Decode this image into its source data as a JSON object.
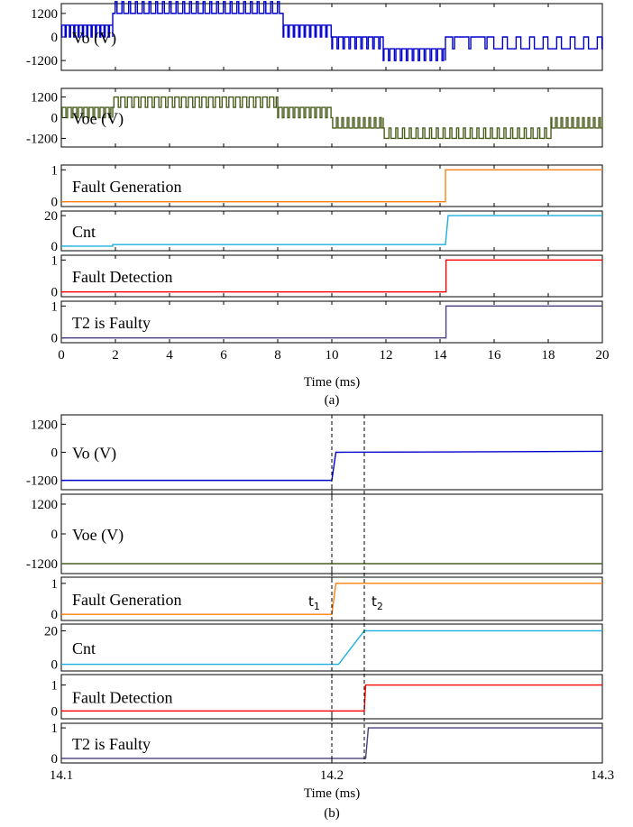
{
  "figure": {
    "panels": [
      {
        "caption": "(a)",
        "xlabel": "Time (ms)"
      },
      {
        "caption": "(b)",
        "xlabel": "Time (ms)"
      }
    ]
  },
  "chart_data": [
    {
      "type": "line",
      "caption": "(a)",
      "xlabel": "Time (ms)",
      "xlim": [
        0,
        20
      ],
      "xticks": [
        "0",
        "2",
        "4",
        "6",
        "8",
        "10",
        "12",
        "14",
        "16",
        "18",
        "20"
      ],
      "xtick_values": [
        0,
        2,
        4,
        6,
        8,
        10,
        12,
        14,
        16,
        18,
        20
      ],
      "subplots": [
        {
          "label": "Vo (V)",
          "color": "#0000cc",
          "ylim": [
            -1700,
            1700
          ],
          "yticks": [
            "1200",
            "0",
            "-1200"
          ],
          "ytick_values": [
            1200,
            0,
            -1200
          ],
          "style": "pwm",
          "segments": [
            {
              "x0": 0.0,
              "x1": 1.9,
              "base": 0,
              "pulse": 600,
              "period": 0.16,
              "duty": 0.75
            },
            {
              "x0": 1.9,
              "x1": 8.2,
              "base": 1200,
              "pulse": 1800,
              "period": 0.25,
              "duty": 0.28
            },
            {
              "x0": 8.2,
              "x1": 10.0,
              "base": 0,
              "pulse": 600,
              "period": 0.2,
              "duty": 0.75
            },
            {
              "x0": 10.0,
              "x1": 11.9,
              "base": -600,
              "pulse": 0,
              "period": 0.22,
              "duty": 0.75
            },
            {
              "x0": 11.9,
              "x1": 14.2,
              "base": -1200,
              "pulse": -600,
              "period": 0.22,
              "duty": 0.75
            },
            {
              "x0": 14.2,
              "x1": 15.9,
              "base": 0,
              "pulse": -600,
              "period": 0.6,
              "duty": 0.12
            },
            {
              "x0": 15.9,
              "x1": 20.0,
              "base": 0,
              "pulse": -600,
              "period": 0.5,
              "duty": 0.65
            }
          ]
        },
        {
          "label": "Voe (V)",
          "color": "#4a5e1e",
          "ylim": [
            -1700,
            1700
          ],
          "yticks": [
            "1200",
            "0",
            "-1200"
          ],
          "ytick_values": [
            1200,
            0,
            -1200
          ],
          "style": "pwm",
          "segments": [
            {
              "x0": 0.0,
              "x1": 1.9,
              "base": 0,
              "pulse": 600,
              "period": 0.2,
              "duty": 0.7
            },
            {
              "x0": 1.9,
              "x1": 8.0,
              "base": 600,
              "pulse": 1200,
              "period": 0.25,
              "duty": 0.65
            },
            {
              "x0": 8.0,
              "x1": 10.0,
              "base": 0,
              "pulse": 600,
              "period": 0.2,
              "duty": 0.7
            },
            {
              "x0": 10.0,
              "x1": 11.9,
              "base": 0,
              "pulse": -600,
              "period": 0.2,
              "duty": 0.7
            },
            {
              "x0": 11.9,
              "x1": 18.1,
              "base": -600,
              "pulse": -1200,
              "period": 0.25,
              "duty": 0.7
            },
            {
              "x0": 18.1,
              "x1": 20.0,
              "base": 0,
              "pulse": -600,
              "period": 0.2,
              "duty": 0.7
            }
          ]
        },
        {
          "label": "Fault Generation",
          "color": "#ff7f0e",
          "ylim": [
            -0.15,
            1.15
          ],
          "yticks": [
            "1",
            "0"
          ],
          "ytick_values": [
            1,
            0
          ],
          "points": [
            [
              0,
              0
            ],
            [
              14.2,
              0
            ],
            [
              14.2,
              1
            ],
            [
              20,
              1
            ]
          ]
        },
        {
          "label": "Cnt",
          "color": "#1ab0e0",
          "ylim": [
            -3,
            23
          ],
          "yticks": [
            "20",
            "0"
          ],
          "ytick_values": [
            20,
            0
          ],
          "points": [
            [
              0,
              0
            ],
            [
              1.9,
              0
            ],
            [
              1.9,
              1
            ],
            [
              14.2,
              1
            ],
            [
              14.3,
              20
            ],
            [
              20,
              20
            ]
          ]
        },
        {
          "label": "Fault Detection",
          "color": "#ff0000",
          "ylim": [
            -0.15,
            1.15
          ],
          "yticks": [
            "1",
            "0"
          ],
          "ytick_values": [
            1,
            0
          ],
          "points": [
            [
              0,
              0
            ],
            [
              14.22,
              0
            ],
            [
              14.22,
              1
            ],
            [
              20,
              1
            ]
          ]
        },
        {
          "label": "T2 is Faulty",
          "color": "#4a3f7a",
          "ylim": [
            -0.15,
            1.15
          ],
          "yticks": [
            "1",
            "0"
          ],
          "ytick_values": [
            1,
            0
          ],
          "points": [
            [
              0,
              0
            ],
            [
              14.22,
              0
            ],
            [
              14.22,
              1
            ],
            [
              20,
              1
            ]
          ]
        }
      ]
    },
    {
      "type": "line",
      "caption": "(b)",
      "xlabel": "Time (ms)",
      "xlim": [
        14.1,
        14.3
      ],
      "xticks": [
        "14.1",
        "14.2",
        "14.3"
      ],
      "xtick_values": [
        14.1,
        14.2,
        14.3
      ],
      "markers": [
        {
          "label": "t",
          "sub": "1",
          "x": 14.2
        },
        {
          "label": "t",
          "sub": "2",
          "x": 14.212
        }
      ],
      "subplots": [
        {
          "label": "Vo (V)",
          "color": "#0000cc",
          "ylim": [
            -1600,
            1600
          ],
          "yticks": [
            "1200",
            "0",
            "-1200"
          ],
          "ytick_values": [
            1200,
            0,
            -1200
          ],
          "points": [
            [
              14.1,
              -1200
            ],
            [
              14.2,
              -1200
            ],
            [
              14.2015,
              0
            ],
            [
              14.3,
              40
            ]
          ]
        },
        {
          "label": "Voe (V)",
          "color": "#4a5e1e",
          "ylim": [
            -1600,
            1600
          ],
          "yticks": [
            "1200",
            "0",
            "-1200"
          ],
          "ytick_values": [
            1200,
            0,
            -1200
          ],
          "points": [
            [
              14.1,
              -1200
            ],
            [
              14.3,
              -1200
            ]
          ]
        },
        {
          "label": "Fault Generation",
          "color": "#ff7f0e",
          "ylim": [
            -0.2,
            1.2
          ],
          "yticks": [
            "1",
            "0"
          ],
          "ytick_values": [
            1,
            0
          ],
          "points": [
            [
              14.1,
              0
            ],
            [
              14.2,
              0
            ],
            [
              14.2015,
              1
            ],
            [
              14.3,
              1
            ]
          ]
        },
        {
          "label": "Cnt",
          "color": "#1ab0e0",
          "ylim": [
            -4,
            24
          ],
          "yticks": [
            "20",
            "0"
          ],
          "ytick_values": [
            20,
            0
          ],
          "points": [
            [
              14.1,
              0
            ],
            [
              14.2025,
              0
            ],
            [
              14.212,
              20
            ],
            [
              14.3,
              20
            ]
          ]
        },
        {
          "label": "Fault Detection",
          "color": "#ff0000",
          "ylim": [
            -0.3,
            1.4
          ],
          "yticks": [
            "1",
            "0"
          ],
          "ytick_values": [
            1,
            0
          ],
          "points": [
            [
              14.1,
              0
            ],
            [
              14.212,
              0
            ],
            [
              14.2125,
              1
            ],
            [
              14.3,
              1
            ]
          ]
        },
        {
          "label": "T2 is Faulty",
          "color": "#4a3f7a",
          "ylim": [
            -0.15,
            1.15
          ],
          "yticks": [
            "1",
            "0"
          ],
          "ytick_values": [
            1,
            0
          ],
          "points": [
            [
              14.1,
              0
            ],
            [
              14.2125,
              0
            ],
            [
              14.2135,
              1
            ],
            [
              14.3,
              1
            ]
          ]
        }
      ]
    }
  ]
}
